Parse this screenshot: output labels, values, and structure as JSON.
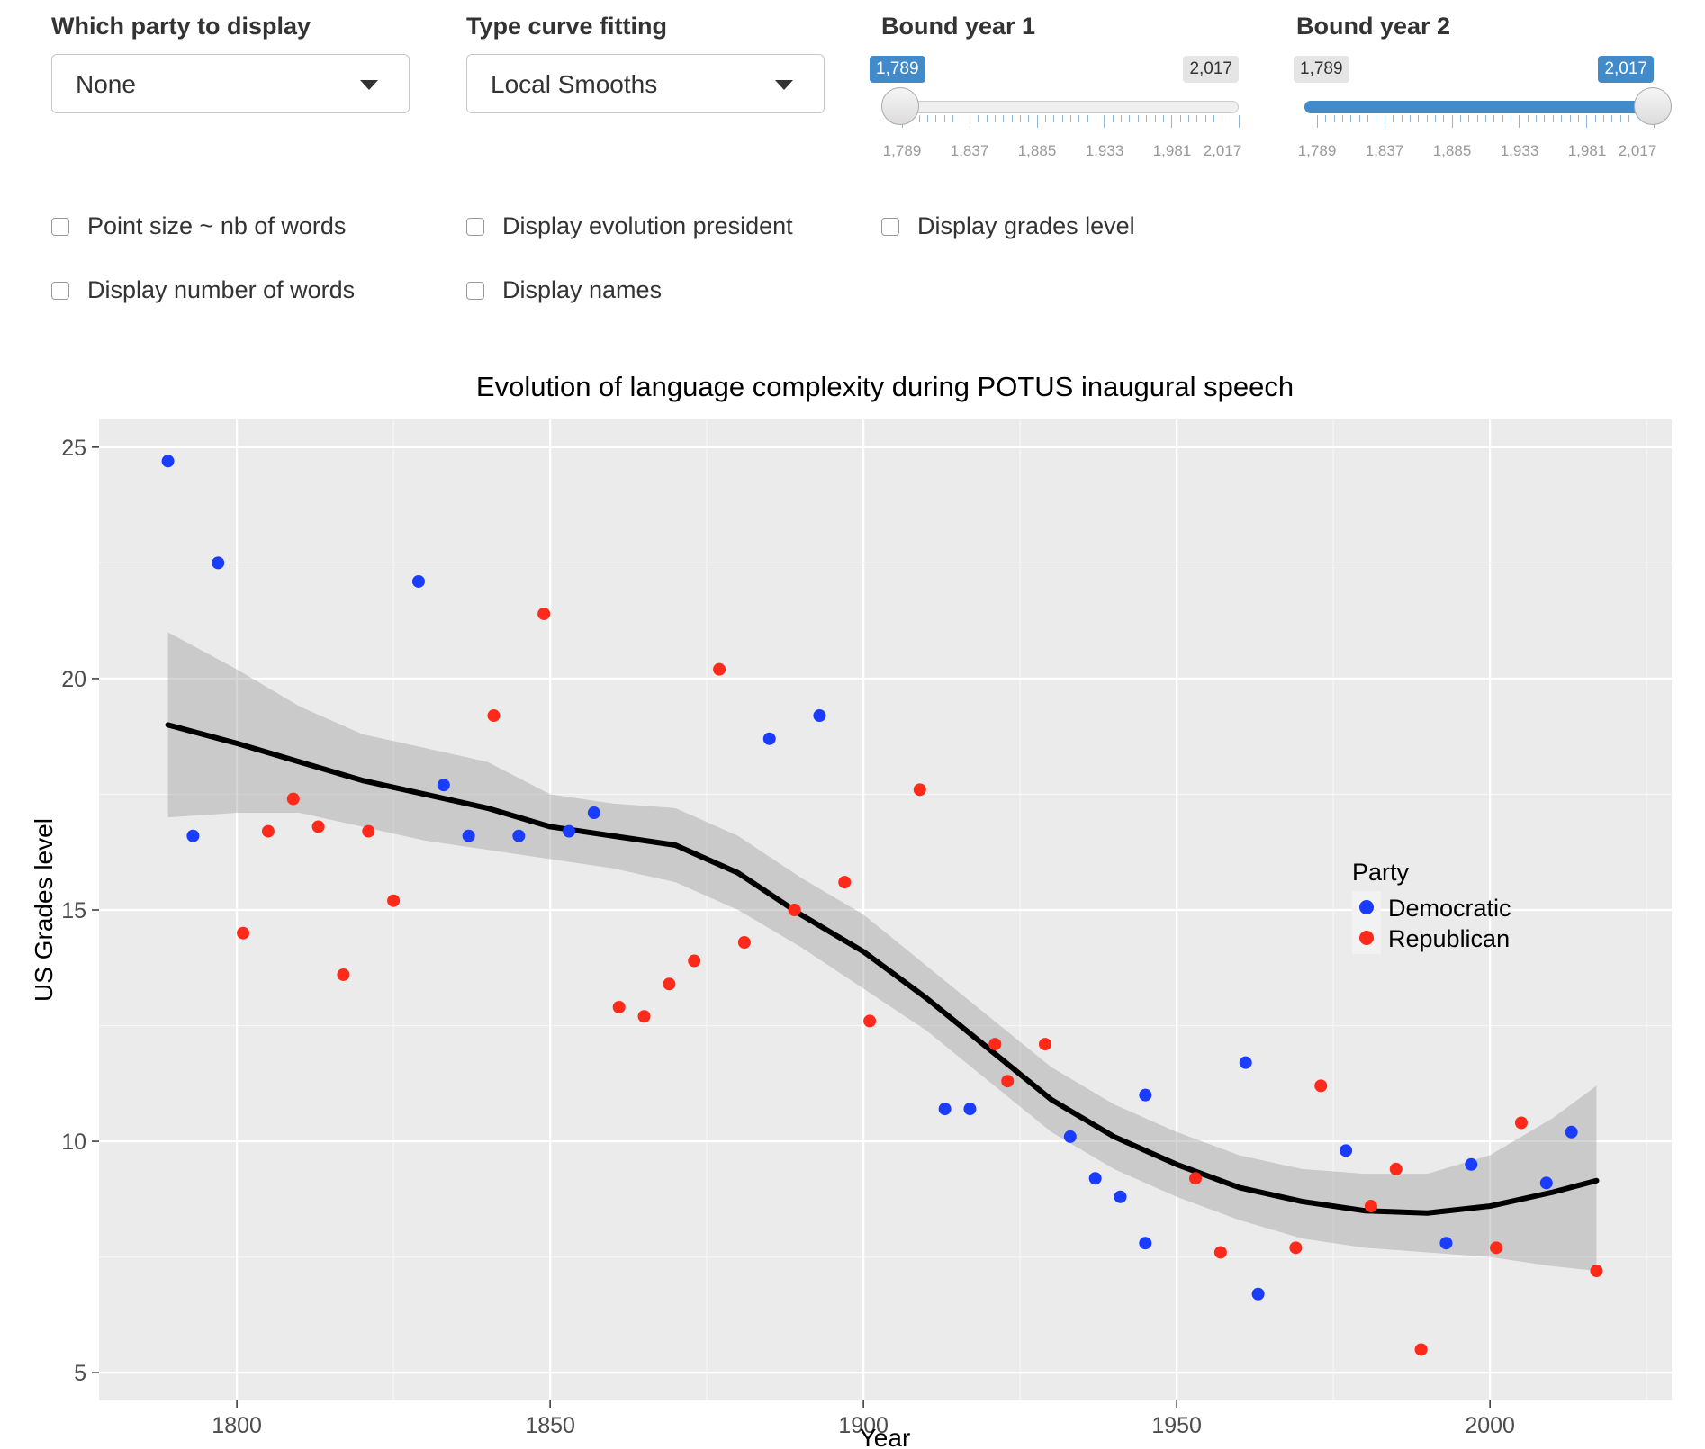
{
  "controls": {
    "party": {
      "label": "Which party to display",
      "value": "None"
    },
    "curve": {
      "label": "Type curve fitting",
      "value": "Local Smooths"
    },
    "bound1": {
      "label": "Bound year 1",
      "value": "1,789",
      "max_label": "2,017",
      "fraction": 0
    },
    "bound2": {
      "label": "Bound year 2",
      "value": "2,017",
      "min_label": "1,789",
      "fraction": 1
    },
    "slider_ticks": [
      "1,789",
      "1,837",
      "1,885",
      "1,933",
      "1,981",
      "2,017"
    ],
    "checkboxes": {
      "point_size": {
        "label": "Point size ~ nb of words",
        "checked": false
      },
      "evolution_president": {
        "label": "Display evolution president",
        "checked": false
      },
      "grades_level": {
        "label": "Display grades level",
        "checked": false
      },
      "number_words": {
        "label": "Display number of words",
        "checked": false
      },
      "names": {
        "label": "Display names",
        "checked": false
      }
    }
  },
  "chart_data": {
    "type": "scatter",
    "title": "Evolution of language complexity during POTUS inaugural speech",
    "xlabel": "Year",
    "ylabel": "US Grades level",
    "xlim": [
      1778,
      2029
    ],
    "ylim": [
      4.4,
      25.6
    ],
    "x_ticks": [
      1800,
      1850,
      1900,
      1950,
      2000
    ],
    "y_ticks": [
      5,
      10,
      15,
      20,
      25
    ],
    "grid": true,
    "legend": {
      "title": "Party",
      "position": "right-inside"
    },
    "series": [
      {
        "name": "Democratic",
        "color": "#1a3cff",
        "points": [
          [
            1789,
            24.7
          ],
          [
            1793,
            16.6
          ],
          [
            1797,
            22.5
          ],
          [
            1829,
            22.1
          ],
          [
            1833,
            17.7
          ],
          [
            1837,
            16.6
          ],
          [
            1845,
            16.6
          ],
          [
            1853,
            16.7
          ],
          [
            1857,
            17.1
          ],
          [
            1885,
            18.7
          ],
          [
            1893,
            19.2
          ],
          [
            1913,
            10.7
          ],
          [
            1917,
            10.7
          ],
          [
            1933,
            10.1
          ],
          [
            1937,
            9.2
          ],
          [
            1941,
            8.8
          ],
          [
            1945,
            11.0
          ],
          [
            1945,
            7.8
          ],
          [
            1961,
            11.7
          ],
          [
            1963,
            6.7
          ],
          [
            1977,
            9.8
          ],
          [
            1993,
            7.8
          ],
          [
            1997,
            9.5
          ],
          [
            2009,
            9.1
          ],
          [
            2013,
            10.2
          ]
        ]
      },
      {
        "name": "Republican",
        "color": "#ff2a1a",
        "points": [
          [
            1801,
            14.5
          ],
          [
            1805,
            16.7
          ],
          [
            1809,
            17.4
          ],
          [
            1813,
            16.8
          ],
          [
            1817,
            13.6
          ],
          [
            1821,
            16.7
          ],
          [
            1825,
            15.2
          ],
          [
            1841,
            19.2
          ],
          [
            1849,
            21.4
          ],
          [
            1861,
            12.9
          ],
          [
            1865,
            12.7
          ],
          [
            1869,
            13.4
          ],
          [
            1873,
            13.9
          ],
          [
            1877,
            20.2
          ],
          [
            1881,
            14.3
          ],
          [
            1889,
            15.0
          ],
          [
            1897,
            15.6
          ],
          [
            1901,
            12.6
          ],
          [
            1909,
            17.6
          ],
          [
            1921,
            12.1
          ],
          [
            1923,
            11.3
          ],
          [
            1929,
            12.1
          ],
          [
            1953,
            9.2
          ],
          [
            1957,
            7.6
          ],
          [
            1969,
            7.7
          ],
          [
            1973,
            11.2
          ],
          [
            1981,
            8.6
          ],
          [
            1985,
            9.4
          ],
          [
            1989,
            5.5
          ],
          [
            2001,
            7.7
          ],
          [
            2005,
            10.4
          ],
          [
            2017,
            7.2
          ]
        ]
      }
    ],
    "smooth": {
      "method": "loess",
      "color": "#000000",
      "fit": [
        [
          1789,
          19.0
        ],
        [
          1800,
          18.6
        ],
        [
          1810,
          18.2
        ],
        [
          1820,
          17.8
        ],
        [
          1830,
          17.5
        ],
        [
          1840,
          17.2
        ],
        [
          1850,
          16.8
        ],
        [
          1860,
          16.6
        ],
        [
          1870,
          16.4
        ],
        [
          1880,
          15.8
        ],
        [
          1890,
          14.9
        ],
        [
          1900,
          14.1
        ],
        [
          1910,
          13.1
        ],
        [
          1920,
          12.0
        ],
        [
          1930,
          10.9
        ],
        [
          1940,
          10.1
        ],
        [
          1950,
          9.5
        ],
        [
          1960,
          9.0
        ],
        [
          1970,
          8.7
        ],
        [
          1980,
          8.5
        ],
        [
          1990,
          8.45
        ],
        [
          2000,
          8.6
        ],
        [
          2010,
          8.9
        ],
        [
          2017,
          9.15
        ]
      ],
      "lower": [
        [
          1789,
          17.0
        ],
        [
          1800,
          17.1
        ],
        [
          1810,
          17.1
        ],
        [
          1820,
          16.8
        ],
        [
          1830,
          16.5
        ],
        [
          1840,
          16.3
        ],
        [
          1850,
          16.1
        ],
        [
          1860,
          15.9
        ],
        [
          1870,
          15.6
        ],
        [
          1880,
          15.0
        ],
        [
          1890,
          14.2
        ],
        [
          1900,
          13.3
        ],
        [
          1910,
          12.4
        ],
        [
          1920,
          11.3
        ],
        [
          1930,
          10.2
        ],
        [
          1940,
          9.4
        ],
        [
          1950,
          8.8
        ],
        [
          1960,
          8.3
        ],
        [
          1970,
          7.9
        ],
        [
          1980,
          7.7
        ],
        [
          1990,
          7.6
        ],
        [
          2000,
          7.5
        ],
        [
          2010,
          7.3
        ],
        [
          2017,
          7.2
        ]
      ],
      "upper": [
        [
          1789,
          21.0
        ],
        [
          1800,
          20.2
        ],
        [
          1810,
          19.4
        ],
        [
          1820,
          18.8
        ],
        [
          1830,
          18.5
        ],
        [
          1840,
          18.2
        ],
        [
          1850,
          17.5
        ],
        [
          1860,
          17.3
        ],
        [
          1870,
          17.2
        ],
        [
          1880,
          16.6
        ],
        [
          1890,
          15.7
        ],
        [
          1900,
          14.9
        ],
        [
          1910,
          13.8
        ],
        [
          1920,
          12.7
        ],
        [
          1930,
          11.6
        ],
        [
          1940,
          10.8
        ],
        [
          1950,
          10.2
        ],
        [
          1960,
          9.7
        ],
        [
          1970,
          9.4
        ],
        [
          1980,
          9.3
        ],
        [
          1990,
          9.3
        ],
        [
          2000,
          9.7
        ],
        [
          2010,
          10.5
        ],
        [
          2017,
          11.2
        ]
      ]
    }
  }
}
